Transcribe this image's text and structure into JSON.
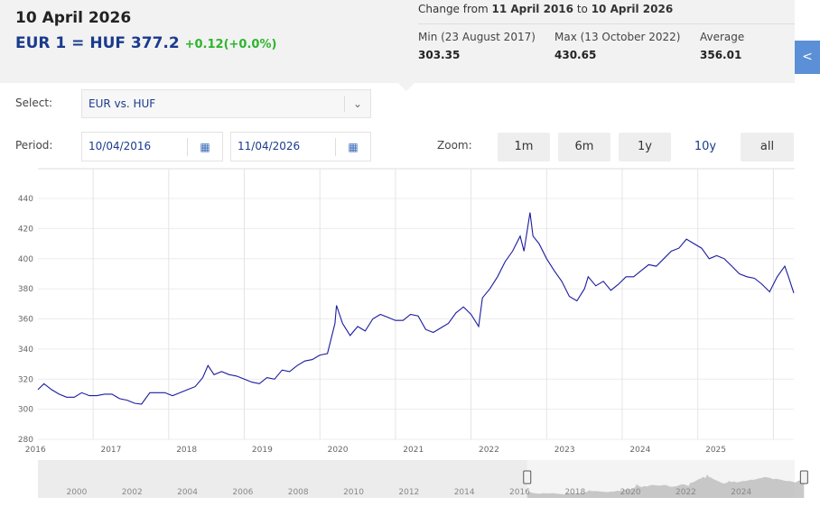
{
  "header": {
    "date": "10 April 2026",
    "pair": "EUR 1 = HUF",
    "rate": 377.2,
    "change": "+0.12(+0.0%)"
  },
  "stats": {
    "change_from": "Change from",
    "start": "11 April 2016",
    "to": "to",
    "end": "10 April 2026",
    "min_label": "Min (23 August 2017)",
    "min": 303.35,
    "max_label": "Max (13 October 2022)",
    "max": 430.65,
    "avg_label": "Average",
    "avg": 356.01
  },
  "controls": {
    "select_label": "Select:",
    "select_value": "EUR vs. HUF",
    "period_label": "Period:",
    "from": "10/04/2016",
    "until": "11/04/2026",
    "zoom_label": "Zoom:",
    "zoom": [
      "1m",
      "6m",
      "1y",
      "10y",
      "all"
    ],
    "zoom_active": "10y"
  },
  "chart_data": {
    "type": "line",
    "x": [
      2016.27,
      2016.35,
      2016.45,
      2016.55,
      2016.65,
      2016.75,
      2016.85,
      2016.95,
      2017.05,
      2017.15,
      2017.25,
      2017.35,
      2017.45,
      2017.55,
      2017.64,
      2017.75,
      2017.85,
      2017.95,
      2018.05,
      2018.15,
      2018.25,
      2018.35,
      2018.45,
      2018.52,
      2018.6,
      2018.7,
      2018.8,
      2018.9,
      2019.0,
      2019.1,
      2019.2,
      2019.3,
      2019.4,
      2019.5,
      2019.6,
      2019.7,
      2019.8,
      2019.9,
      2020.0,
      2020.1,
      2020.2,
      2020.22,
      2020.3,
      2020.4,
      2020.5,
      2020.6,
      2020.7,
      2020.8,
      2020.9,
      2021.0,
      2021.1,
      2021.2,
      2021.3,
      2021.4,
      2021.5,
      2021.6,
      2021.7,
      2021.8,
      2021.9,
      2022.0,
      2022.1,
      2022.15,
      2022.25,
      2022.35,
      2022.45,
      2022.55,
      2022.65,
      2022.7,
      2022.78,
      2022.82,
      2022.9,
      2023.0,
      2023.1,
      2023.2,
      2023.3,
      2023.4,
      2023.5,
      2023.55,
      2023.65,
      2023.75,
      2023.85,
      2023.95,
      2024.05,
      2024.15,
      2024.25,
      2024.35,
      2024.45,
      2024.55,
      2024.65,
      2024.75,
      2024.85,
      2024.95,
      2025.05,
      2025.15,
      2025.25,
      2025.35,
      2025.45,
      2025.55,
      2025.65,
      2025.75,
      2025.85,
      2025.95,
      2026.05,
      2026.15,
      2026.2,
      2026.27
    ],
    "series": [
      {
        "name": "EUR vs. HUF",
        "color": "#1b1ba0",
        "values": [
          313,
          317,
          313,
          310,
          308,
          308,
          311,
          309,
          309,
          310,
          310,
          307,
          306,
          304,
          303.35,
          311,
          311,
          311,
          309,
          311,
          313,
          315,
          321,
          329,
          323,
          325,
          323,
          322,
          320,
          318,
          317,
          321,
          320,
          326,
          325,
          329,
          332,
          333,
          336,
          337,
          357,
          369,
          357,
          349,
          355,
          352,
          360,
          363,
          361,
          359,
          359,
          363,
          362,
          353,
          351,
          354,
          357,
          364,
          368,
          363,
          355,
          374,
          380,
          388,
          398,
          405,
          415,
          405,
          430.65,
          415,
          410,
          400,
          392,
          385,
          375,
          372,
          380,
          388,
          382,
          385,
          379,
          383,
          388,
          388,
          392,
          396,
          395,
          400,
          405,
          407,
          413,
          410,
          407,
          400,
          402,
          400,
          395,
          390,
          388,
          387,
          383,
          378,
          388,
          395,
          388,
          377.2
        ]
      }
    ],
    "xlim": [
      2016.27,
      2026.27
    ],
    "xticks": [
      {
        "value": 2016.5,
        "label": "2016"
      },
      {
        "value": 2017.5,
        "label": "2017"
      },
      {
        "value": 2018.5,
        "label": "2018"
      },
      {
        "value": 2019.5,
        "label": "2019"
      },
      {
        "value": 2020.5,
        "label": "2020"
      },
      {
        "value": 2021.5,
        "label": "2021"
      },
      {
        "value": 2022.5,
        "label": "2022"
      },
      {
        "value": 2023.5,
        "label": "2023"
      },
      {
        "value": 2024.5,
        "label": "2024"
      },
      {
        "value": 2025.5,
        "label": "2025"
      }
    ],
    "xgrid": [
      2017,
      2018,
      2019,
      2020,
      2021,
      2022,
      2023,
      2024,
      2025,
      2026
    ],
    "ylim": [
      280,
      452
    ],
    "yticks": [
      280,
      300,
      320,
      340,
      360,
      380,
      400,
      420,
      440
    ],
    "grid": true,
    "navigator": {
      "xlim": [
        1998.6,
        2025.9
      ],
      "xticks": [
        2000,
        2002,
        2004,
        2006,
        2008,
        2010,
        2012,
        2014,
        2016,
        2018,
        2020,
        2022,
        2024
      ]
    }
  }
}
